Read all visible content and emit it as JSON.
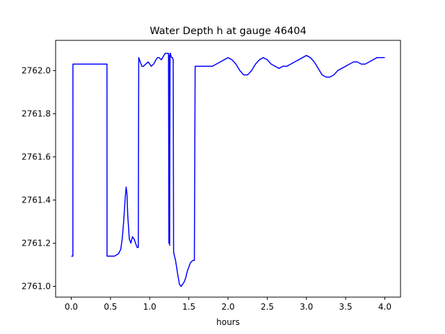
{
  "chart_data": {
    "type": "line",
    "title": "Water Depth h at gauge 46404",
    "xlabel": "hours",
    "ylabel": "",
    "xlim": [
      -0.2,
      4.2
    ],
    "ylim": [
      2760.95,
      2762.14
    ],
    "xticks": [
      0.0,
      0.5,
      1.0,
      1.5,
      2.0,
      2.5,
      3.0,
      3.5,
      4.0
    ],
    "xtick_labels": [
      "0.0",
      "0.5",
      "1.0",
      "1.5",
      "2.0",
      "2.5",
      "3.0",
      "3.5",
      "4.0"
    ],
    "yticks": [
      2761.0,
      2761.2,
      2761.4,
      2761.6,
      2761.8,
      2762.0
    ],
    "ytick_labels": [
      "2761.0",
      "2761.2",
      "2761.4",
      "2761.6",
      "2761.8",
      "2762.0"
    ],
    "grid": false,
    "series": [
      {
        "color": "#0000ff",
        "x": [
          0.0,
          0.02,
          0.021,
          0.1,
          0.2,
          0.3,
          0.4,
          0.455,
          0.456,
          0.5,
          0.55,
          0.6,
          0.63,
          0.65,
          0.67,
          0.69,
          0.7,
          0.71,
          0.72,
          0.74,
          0.76,
          0.78,
          0.8,
          0.82,
          0.84,
          0.855,
          0.86,
          0.88,
          0.9,
          0.92,
          0.95,
          0.98,
          1.0,
          1.02,
          1.05,
          1.08,
          1.1,
          1.12,
          1.15,
          1.18,
          1.2,
          1.22,
          1.24,
          1.245,
          1.25,
          1.255,
          1.26,
          1.265,
          1.27,
          1.28,
          1.29,
          1.3,
          1.305,
          1.31,
          1.33,
          1.36,
          1.38,
          1.4,
          1.42,
          1.44,
          1.46,
          1.48,
          1.5,
          1.52,
          1.55,
          1.57,
          1.58,
          1.6,
          1.65,
          1.7,
          1.75,
          1.8,
          1.85,
          1.9,
          1.95,
          2.0,
          2.05,
          2.1,
          2.15,
          2.2,
          2.25,
          2.3,
          2.35,
          2.4,
          2.45,
          2.5,
          2.55,
          2.6,
          2.65,
          2.7,
          2.75,
          2.8,
          2.85,
          2.9,
          2.95,
          3.0,
          3.05,
          3.1,
          3.15,
          3.2,
          3.25,
          3.3,
          3.35,
          3.4,
          3.45,
          3.5,
          3.55,
          3.6,
          3.65,
          3.7,
          3.75,
          3.8,
          3.85,
          3.9,
          3.95,
          4.0
        ],
        "y": [
          2761.14,
          2761.14,
          2762.03,
          2762.03,
          2762.03,
          2762.03,
          2762.03,
          2762.03,
          2761.14,
          2761.14,
          2761.14,
          2761.15,
          2761.17,
          2761.22,
          2761.31,
          2761.42,
          2761.46,
          2761.43,
          2761.33,
          2761.22,
          2761.2,
          2761.23,
          2761.22,
          2761.2,
          2761.18,
          2761.18,
          2762.06,
          2762.04,
          2762.02,
          2762.02,
          2762.03,
          2762.04,
          2762.03,
          2762.02,
          2762.03,
          2762.05,
          2762.06,
          2762.06,
          2762.05,
          2762.07,
          2762.08,
          2762.08,
          2762.08,
          2761.2,
          2762.07,
          2761.19,
          2762.08,
          2762.08,
          2762.07,
          2762.06,
          2762.06,
          2762.05,
          2761.16,
          2761.15,
          2761.12,
          2761.05,
          2761.01,
          2761.0,
          2761.01,
          2761.02,
          2761.04,
          2761.07,
          2761.09,
          2761.11,
          2761.12,
          2761.12,
          2762.02,
          2762.02,
          2762.02,
          2762.02,
          2762.02,
          2762.02,
          2762.03,
          2762.04,
          2762.05,
          2762.06,
          2762.05,
          2762.03,
          2762.0,
          2761.98,
          2761.98,
          2762.0,
          2762.03,
          2762.05,
          2762.06,
          2762.05,
          2762.03,
          2762.02,
          2762.01,
          2762.02,
          2762.02,
          2762.03,
          2762.04,
          2762.05,
          2762.06,
          2762.07,
          2762.06,
          2762.04,
          2762.01,
          2761.98,
          2761.97,
          2761.97,
          2761.98,
          2762.0,
          2762.01,
          2762.02,
          2762.03,
          2762.04,
          2762.04,
          2762.03,
          2762.03,
          2762.04,
          2762.05,
          2762.06,
          2762.06,
          2762.06
        ]
      }
    ]
  }
}
